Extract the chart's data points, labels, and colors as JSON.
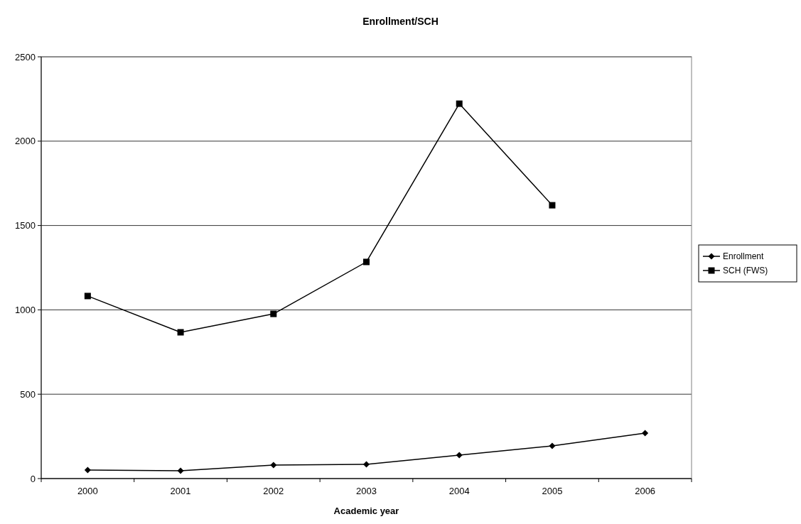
{
  "chart_data": {
    "type": "line",
    "title": "Enrollment/SCH",
    "xlabel": "Academic year",
    "categories": [
      "2000",
      "2001",
      "2002",
      "2003",
      "2004",
      "2005",
      "2006"
    ],
    "series": [
      {
        "name": "Enrollment",
        "color": "#000000",
        "marker": "diamond",
        "values": [
          50,
          46,
          80,
          84,
          139,
          194,
          269
        ]
      },
      {
        "name": "SCH (FWS)",
        "color": "#000000",
        "marker": "square",
        "values": [
          1082,
          867,
          976,
          1284,
          2222,
          1620,
          null
        ]
      }
    ],
    "ylim": [
      0,
      2500
    ],
    "yticks": [
      0,
      500,
      1000,
      1500,
      2000,
      2500
    ],
    "grid": "y",
    "legend": "right",
    "line_style": "solid"
  }
}
